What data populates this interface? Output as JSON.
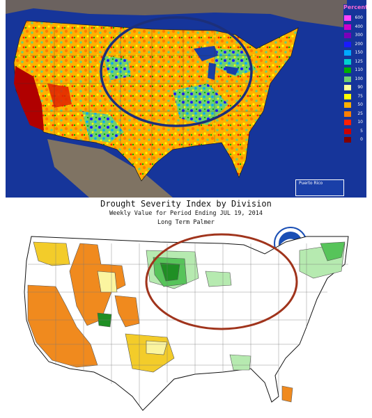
{
  "top_map": {
    "legend_title": "Percent",
    "legend_levels": [
      "600",
      "400",
      "300",
      "200",
      "150",
      "125",
      "110",
      "100",
      "90",
      "75",
      "50",
      "25",
      "10",
      "5",
      "0"
    ],
    "legend_colors": [
      "#ff44ff",
      "#cc00cc",
      "#7a00b8",
      "#1a1aff",
      "#00a8ff",
      "#00d0d0",
      "#00b000",
      "#70d070",
      "#ffff99",
      "#ffff00",
      "#ffb000",
      "#ff7f00",
      "#ff2000",
      "#cc0000",
      "#800000"
    ],
    "inset_label": "Puerto Rico",
    "highlight_ellipse_color": "#1c2f7a"
  },
  "bottom_map": {
    "title": "Drought Severity Index by Division",
    "subtitle": "Weekly Value for Period Ending JUL 19, 2014",
    "index_name": "Long Term Palmer",
    "logo_text": "NOAA",
    "highlight_ellipse_color": "#a0341c",
    "category_colors": {
      "extreme_drought": "#f08a1e",
      "moderate_drought": "#f3cc2a",
      "near_normal_dry": "#fbf5a0",
      "normal": "#ffffff",
      "moist": "#b6eab0",
      "very_moist": "#57c45a",
      "extremely_moist": "#1f8f24"
    }
  }
}
